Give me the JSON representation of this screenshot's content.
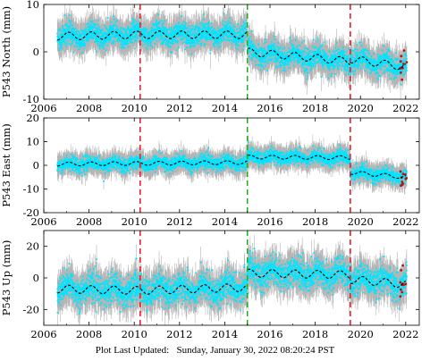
{
  "footer": {
    "label": "Plot Last Updated:",
    "datetime": "Sunday, January 30, 2022 08:20:24 PST"
  },
  "colors": {
    "points": "#00e5ff",
    "error_bars": "#a8a8a8",
    "model": "#000000",
    "earthquake": "#e8202a",
    "offset": "#22b022",
    "outlier": "#c01010"
  },
  "chart_data": [
    {
      "type": "scatter",
      "station": "P543",
      "ylabel": "P543 North (mm)",
      "xlim": [
        2006,
        2022.6
      ],
      "ylim": [
        -10,
        10
      ],
      "xticks": [
        2006,
        2008,
        2010,
        2012,
        2014,
        2016,
        2018,
        2020,
        2022
      ],
      "yticks": [
        -10,
        0,
        10
      ],
      "vlines": [
        {
          "x": 2010.26,
          "color": "earthquake"
        },
        {
          "x": 2015.0,
          "color": "offset"
        },
        {
          "x": 2019.55,
          "color": "earthquake"
        }
      ],
      "trend": [
        [
          2006.6,
          3.3
        ],
        [
          2010.26,
          3.6
        ],
        [
          2015.0,
          3.6
        ],
        [
          2015.0,
          0.0
        ],
        [
          2019.55,
          -2.0
        ],
        [
          2019.55,
          -1.5
        ],
        [
          2022.0,
          -3.2
        ]
      ],
      "seasonal_amplitude": 0.8,
      "scatter_sd": 1.2,
      "errorbar_halfwidth": 2.8
    },
    {
      "type": "scatter",
      "station": "P543",
      "ylabel": "P543 East (mm)",
      "xlim": [
        2006,
        2022.6
      ],
      "ylim": [
        -20,
        20
      ],
      "xticks": [
        2006,
        2008,
        2010,
        2012,
        2014,
        2016,
        2018,
        2020,
        2022
      ],
      "yticks": [
        -20,
        -10,
        0,
        10,
        20
      ],
      "vlines": [
        {
          "x": 2010.26,
          "color": "earthquake"
        },
        {
          "x": 2015.0,
          "color": "offset"
        },
        {
          "x": 2019.55,
          "color": "earthquake"
        }
      ],
      "trend": [
        [
          2006.6,
          0.5
        ],
        [
          2010.26,
          0.8
        ],
        [
          2015.0,
          1.2
        ],
        [
          2015.0,
          3.5
        ],
        [
          2019.55,
          3.2
        ],
        [
          2019.55,
          -3.0
        ],
        [
          2022.0,
          -5.0
        ]
      ],
      "seasonal_amplitude": 0.8,
      "scatter_sd": 1.4,
      "errorbar_halfwidth": 4.0
    },
    {
      "type": "scatter",
      "station": "P543",
      "ylabel": "P543 Up (mm)",
      "xlim": [
        2006,
        2022.6
      ],
      "ylim": [
        -30,
        30
      ],
      "xticks": [
        2006,
        2008,
        2010,
        2012,
        2014,
        2016,
        2018,
        2020,
        2022
      ],
      "yticks": [
        -20,
        0,
        20
      ],
      "vlines": [
        {
          "x": 2010.26,
          "color": "earthquake"
        },
        {
          "x": 2015.0,
          "color": "offset"
        },
        {
          "x": 2019.55,
          "color": "earthquake"
        }
      ],
      "trend": [
        [
          2006.6,
          -7
        ],
        [
          2010.26,
          -8
        ],
        [
          2015.0,
          -6
        ],
        [
          2015.0,
          3
        ],
        [
          2019.55,
          2
        ],
        [
          2019.55,
          -1
        ],
        [
          2022.0,
          -4
        ]
      ],
      "seasonal_amplitude": 2.5,
      "scatter_sd": 4.5,
      "errorbar_halfwidth": 9.0
    }
  ]
}
